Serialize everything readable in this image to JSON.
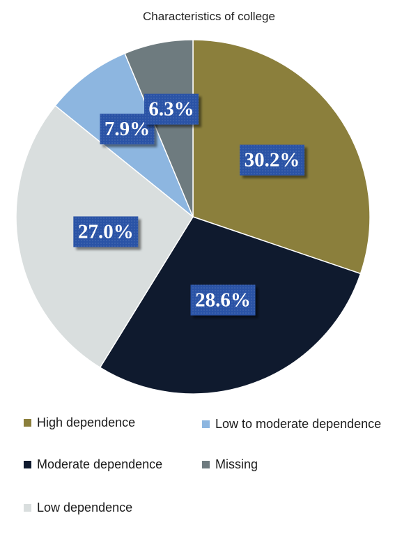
{
  "chart_data": {
    "type": "pie",
    "title": "Characteristics of college",
    "slices": [
      {
        "name": "High dependence",
        "value": 30.2,
        "label": "30.2%",
        "color": "#8b7f3c"
      },
      {
        "name": "Moderate dependence",
        "value": 28.6,
        "label": "28.6%",
        "color": "#0f1a2e"
      },
      {
        "name": "Low dependence",
        "value": 27.0,
        "label": "27.0%",
        "color": "#d9dede"
      },
      {
        "name": "Low to moderate dependence",
        "value": 7.9,
        "label": "7.9%",
        "color": "#8db6e0"
      },
      {
        "name": "Missing",
        "value": 6.3,
        "label": "6.3%",
        "color": "#6e7b7f"
      }
    ],
    "start_angle_deg": 0,
    "direction": "clockwise",
    "label_box_color": "#2c52a6",
    "legend": {
      "position": "bottom",
      "items": [
        {
          "label": "High dependence",
          "color": "#8b7f3c"
        },
        {
          "label": "Low to moderate dependence",
          "color": "#8db6e0"
        },
        {
          "label": "Moderate dependence",
          "color": "#0f1a2e"
        },
        {
          "label": "Missing",
          "color": "#6e7b7f"
        },
        {
          "label": "Low dependence",
          "color": "#d9dede"
        }
      ]
    }
  }
}
